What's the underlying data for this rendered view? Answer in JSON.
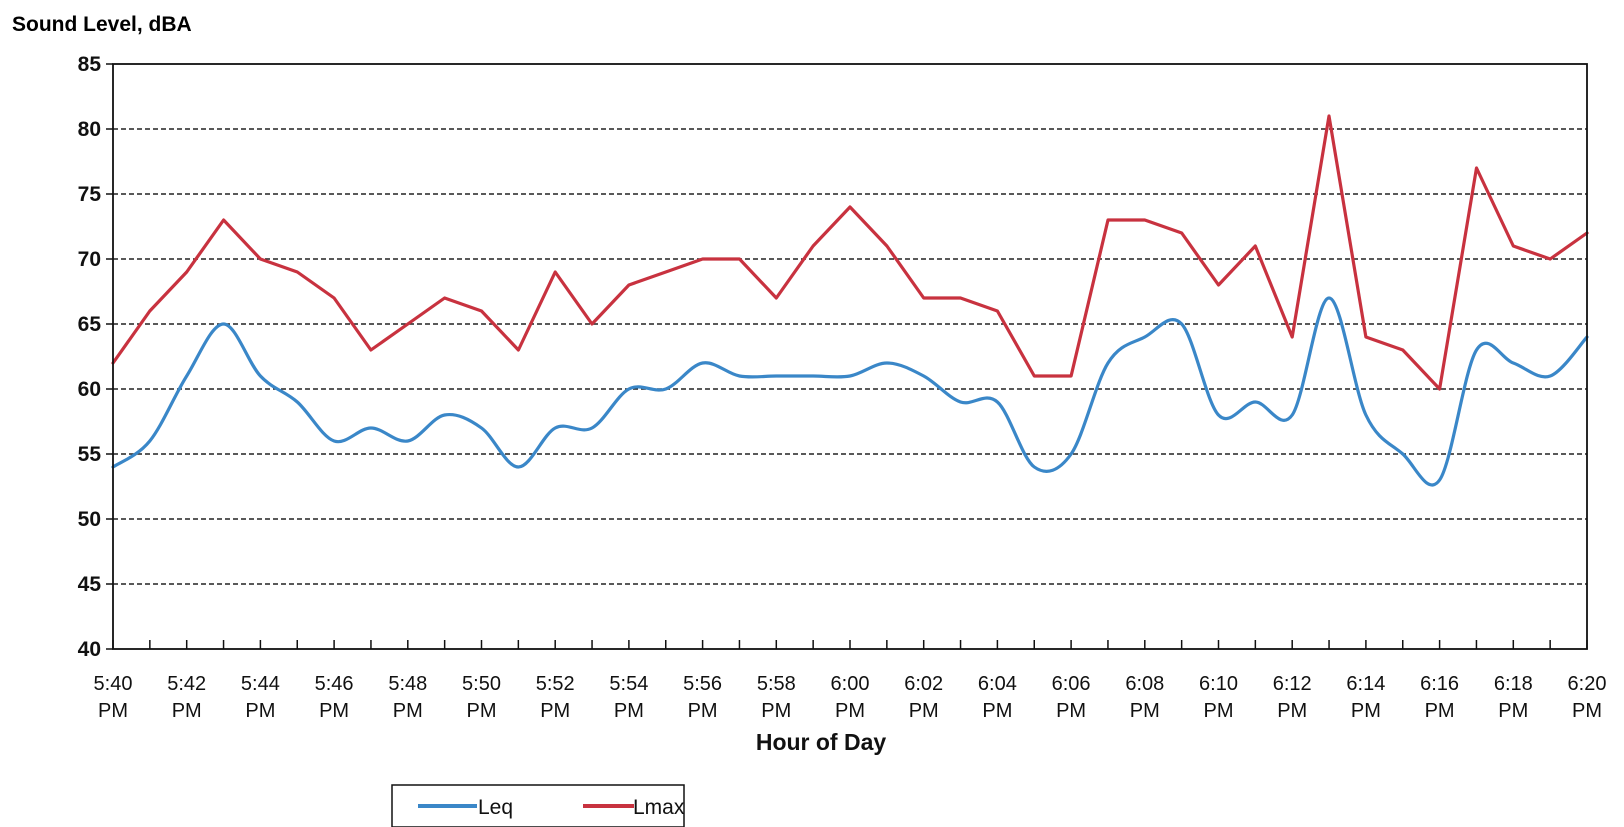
{
  "chart_data": {
    "type": "line",
    "ylabel": "Sound Level, dBA",
    "xlabel": "Hour of Day",
    "ylim": [
      40,
      85
    ],
    "yticks": [
      "40",
      "45",
      "50",
      "55",
      "60",
      "65",
      "70",
      "75",
      "80",
      "85"
    ],
    "grid": "horizontal dashed",
    "legend_position": "bottom-left",
    "x": [
      "5:40 PM",
      "5:41 PM",
      "5:42 PM",
      "5:43 PM",
      "5:44 PM",
      "5:45 PM",
      "5:46 PM",
      "5:47 PM",
      "5:48 PM",
      "5:49 PM",
      "5:50 PM",
      "5:51 PM",
      "5:52 PM",
      "5:53 PM",
      "5:54 PM",
      "5:55 PM",
      "5:56 PM",
      "5:57 PM",
      "5:58 PM",
      "5:59 PM",
      "6:00 PM",
      "6:01 PM",
      "6:02 PM",
      "6:03 PM",
      "6:04 PM",
      "6:05 PM",
      "6:06 PM",
      "6:07 PM",
      "6:08 PM",
      "6:09 PM",
      "6:10 PM",
      "6:11 PM",
      "6:12 PM",
      "6:13 PM",
      "6:14 PM",
      "6:15 PM",
      "6:16 PM",
      "6:17 PM",
      "6:18 PM",
      "6:19 PM",
      "6:20 PM"
    ],
    "tick_labels": [
      {
        "time": "5:40",
        "period": "PM"
      },
      {
        "time": "5:42",
        "period": "PM"
      },
      {
        "time": "5:44",
        "period": "PM"
      },
      {
        "time": "5:46",
        "period": "PM"
      },
      {
        "time": "5:48",
        "period": "PM"
      },
      {
        "time": "5:50",
        "period": "PM"
      },
      {
        "time": "5:52",
        "period": "PM"
      },
      {
        "time": "5:54",
        "period": "PM"
      },
      {
        "time": "5:56",
        "period": "PM"
      },
      {
        "time": "5:58",
        "period": "PM"
      },
      {
        "time": "6:00",
        "period": "PM"
      },
      {
        "time": "6:02",
        "period": "PM"
      },
      {
        "time": "6:04",
        "period": "PM"
      },
      {
        "time": "6:06",
        "period": "PM"
      },
      {
        "time": "6:08",
        "period": "PM"
      },
      {
        "time": "6:10",
        "period": "PM"
      },
      {
        "time": "6:12",
        "period": "PM"
      },
      {
        "time": "6:14",
        "period": "PM"
      },
      {
        "time": "6:16",
        "period": "PM"
      },
      {
        "time": "6:18",
        "period": "PM"
      },
      {
        "time": "6:20",
        "period": "PM"
      }
    ],
    "series": [
      {
        "name": "Leq",
        "color": "#3a87c8",
        "smooth": true,
        "values": [
          54,
          56,
          61,
          65,
          61,
          59,
          56,
          57,
          56,
          58,
          57,
          54,
          57,
          57,
          60,
          60,
          62,
          61,
          61,
          61,
          61,
          62,
          61,
          59,
          59,
          54,
          55,
          62,
          64,
          65,
          58,
          59,
          58,
          67,
          58,
          55,
          53,
          63,
          62,
          61,
          64
        ]
      },
      {
        "name": "Lmax",
        "color": "#c8323f",
        "smooth": false,
        "values": [
          62,
          66,
          69,
          73,
          70,
          69,
          67,
          63,
          65,
          67,
          66,
          63,
          69,
          65,
          68,
          69,
          70,
          70,
          67,
          71,
          74,
          71,
          67,
          67,
          66,
          61,
          61,
          73,
          73,
          72,
          68,
          71,
          64,
          81,
          64,
          63,
          60,
          77,
          71,
          70,
          72
        ]
      }
    ]
  }
}
